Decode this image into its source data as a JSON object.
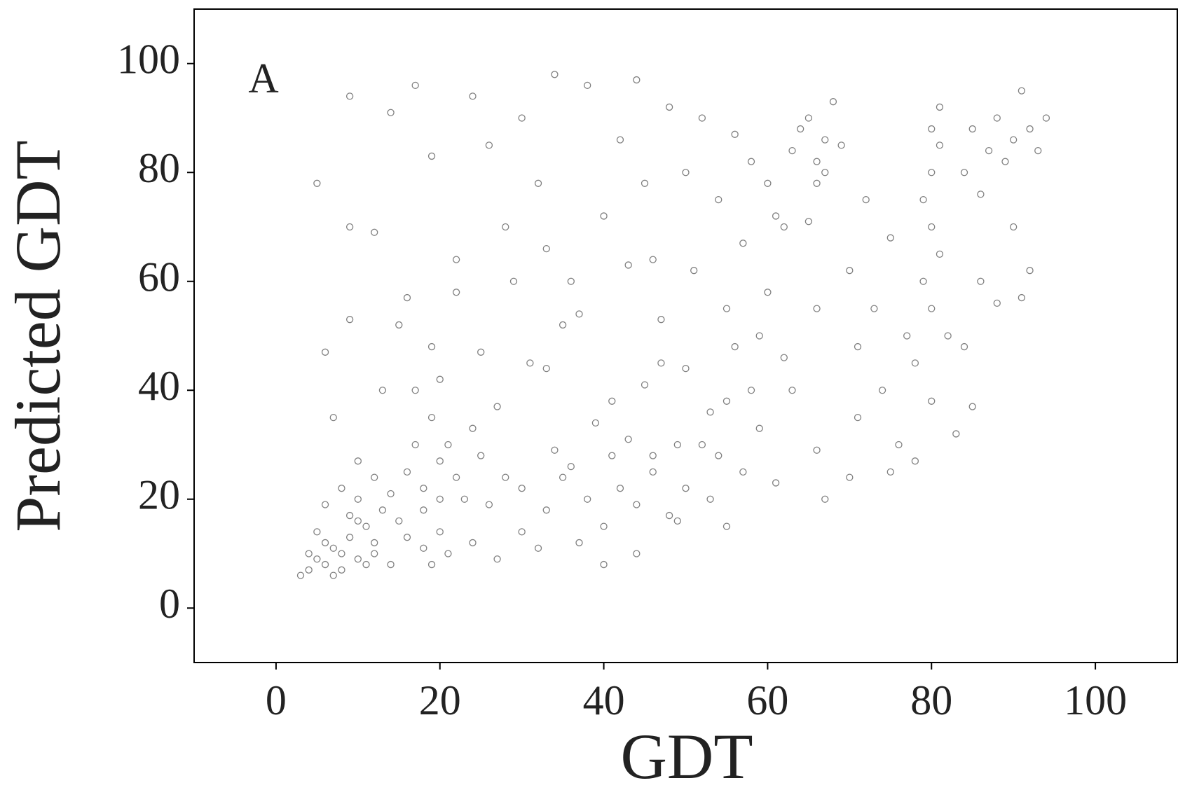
{
  "chart_data": {
    "type": "scatter",
    "x_label": "GDT",
    "y_label": "Predicted GDT",
    "annotation": "A",
    "color": "#808080",
    "xlim": [
      -10,
      110
    ],
    "ylim": [
      -10,
      110
    ],
    "xticks": [
      0,
      20,
      40,
      60,
      80,
      100
    ],
    "yticks": [
      0,
      20,
      40,
      60,
      80,
      100
    ],
    "x": [
      4,
      5,
      6,
      7,
      8,
      9,
      10,
      11,
      12,
      13,
      5,
      6,
      7,
      8,
      9,
      10,
      11,
      12,
      14,
      15,
      16,
      17,
      18,
      19,
      20,
      21,
      20,
      19,
      18,
      22,
      17,
      19,
      21,
      20,
      23,
      24,
      25,
      26,
      27,
      28,
      30,
      31,
      33,
      34,
      35,
      36,
      38,
      39,
      40,
      41,
      42,
      43,
      44,
      45,
      46,
      47,
      48,
      49,
      50,
      51,
      53,
      54,
      55,
      56,
      57,
      58,
      59,
      60,
      61,
      62,
      63,
      64,
      65,
      66,
      67,
      68,
      66,
      65,
      67,
      69,
      70,
      71,
      72,
      73,
      74,
      75,
      76,
      77,
      78,
      79,
      80,
      80,
      80,
      81,
      80,
      79,
      81,
      82,
      80,
      81,
      84,
      85,
      86,
      87,
      88,
      89,
      90,
      91,
      92,
      93,
      86,
      88,
      90,
      92,
      94,
      85,
      84,
      91,
      78,
      83,
      5,
      9,
      9,
      12,
      14,
      17,
      19,
      22,
      24,
      26,
      28,
      30,
      32,
      34,
      36,
      38,
      40,
      42,
      44,
      46,
      48,
      50,
      52,
      54,
      56,
      58,
      60,
      62,
      45,
      33,
      6,
      7,
      9,
      10,
      13,
      15,
      16,
      22,
      25,
      29,
      37,
      40,
      44,
      49,
      55,
      57,
      61,
      66,
      67,
      70,
      33,
      37,
      43,
      47,
      52,
      55,
      59,
      63,
      66,
      71,
      24,
      27,
      30,
      32,
      35,
      41,
      46,
      50,
      53,
      75,
      3,
      4,
      6,
      8,
      10,
      12,
      14,
      16,
      18,
      20
    ],
    "y": [
      7,
      9,
      8,
      11,
      10,
      13,
      9,
      15,
      12,
      18,
      14,
      19,
      6,
      22,
      17,
      20,
      8,
      24,
      21,
      16,
      25,
      30,
      22,
      35,
      27,
      10,
      42,
      8,
      18,
      24,
      40,
      48,
      30,
      14,
      20,
      33,
      28,
      19,
      37,
      24,
      22,
      45,
      18,
      29,
      52,
      26,
      20,
      34,
      15,
      28,
      22,
      31,
      19,
      41,
      25,
      53,
      17,
      30,
      44,
      62,
      36,
      28,
      55,
      48,
      67,
      40,
      33,
      58,
      72,
      46,
      84,
      88,
      90,
      82,
      86,
      93,
      78,
      71,
      80,
      85,
      62,
      48,
      75,
      55,
      40,
      68,
      30,
      50,
      45,
      60,
      70,
      80,
      88,
      65,
      55,
      75,
      85,
      50,
      38,
      92,
      80,
      88,
      76,
      84,
      90,
      82,
      86,
      95,
      88,
      84,
      60,
      56,
      70,
      62,
      90,
      37,
      48,
      57,
      27,
      32,
      78,
      94,
      70,
      69,
      91,
      96,
      83,
      64,
      94,
      85,
      70,
      90,
      78,
      98,
      60,
      96,
      72,
      86,
      97,
      64,
      92,
      80,
      90,
      75,
      87,
      82,
      78,
      70,
      78,
      66,
      47,
      35,
      53,
      27,
      40,
      52,
      57,
      58,
      47,
      60,
      12,
      8,
      10,
      16,
      15,
      25,
      23,
      29,
      20,
      24,
      44,
      54,
      63,
      45,
      30,
      38,
      50,
      40,
      55,
      35,
      12,
      9,
      14,
      11,
      24,
      38,
      28,
      22,
      20,
      25,
      6,
      10,
      12,
      7,
      16,
      10,
      8,
      13,
      11,
      20
    ]
  }
}
